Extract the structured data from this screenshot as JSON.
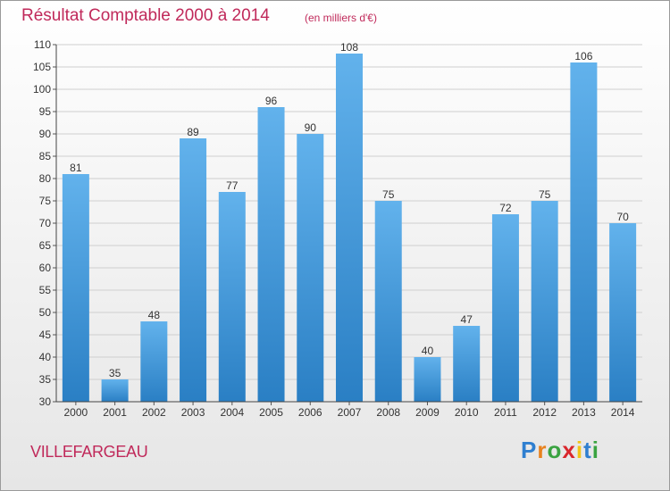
{
  "title": "Résultat Comptable 2000 à 2014",
  "subtitle": "(en milliers d'€)",
  "place": "VILLEFARGEAU",
  "logo": {
    "letters": [
      "P",
      "r",
      "o",
      "x",
      "i",
      "t",
      "i"
    ],
    "colors": [
      "#2f7fd0",
      "#e8821e",
      "#3aa341",
      "#d9262c",
      "#f2c417",
      "#2f7fd0",
      "#3aa341"
    ]
  },
  "colors": {
    "accent": "#c0295a",
    "bar_light": "#62b2ec",
    "bar_dark": "#2a7fc4",
    "grid": "#cfcfcf"
  },
  "chart_data": {
    "type": "bar",
    "title": "Résultat Comptable 2000 à 2014",
    "subtitle": "(en milliers d'€)",
    "categories": [
      "2000",
      "2001",
      "2002",
      "2003",
      "2004",
      "2005",
      "2006",
      "2007",
      "2008",
      "2009",
      "2010",
      "2011",
      "2012",
      "2013",
      "2014"
    ],
    "values": [
      81,
      35,
      48,
      89,
      77,
      96,
      90,
      108,
      75,
      40,
      47,
      72,
      75,
      106,
      70
    ],
    "ylim": [
      30,
      110
    ],
    "yticks": [
      30,
      35,
      40,
      45,
      50,
      55,
      60,
      65,
      70,
      75,
      80,
      85,
      90,
      95,
      100,
      105,
      110
    ],
    "grid": true,
    "legend": "none"
  }
}
